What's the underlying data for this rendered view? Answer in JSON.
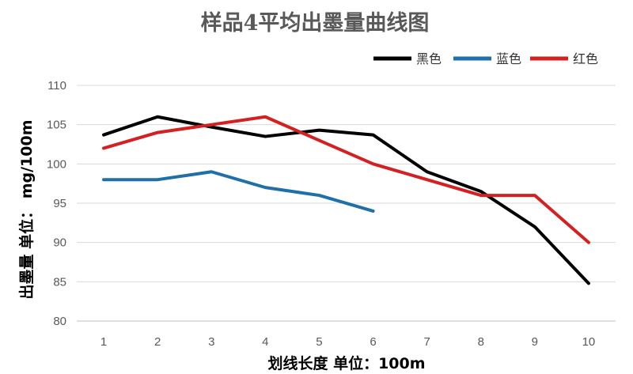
{
  "chart_data": {
    "type": "line",
    "title": "样品4平均出墨量曲线图",
    "xlabel": "划线长度 单位：100m",
    "ylabel": "出墨量 单位： mg/100m",
    "categories": [
      "1",
      "2",
      "3",
      "4",
      "5",
      "6",
      "7",
      "8",
      "9",
      "10"
    ],
    "ylim": [
      80,
      110
    ],
    "yticks": [
      "80",
      "85",
      "90",
      "95",
      "100",
      "105",
      "110"
    ],
    "grid": true,
    "legend_position": "top-right",
    "series": [
      {
        "name": "黑色",
        "color": "#000000",
        "values": [
          103.7,
          106.0,
          104.7,
          103.5,
          104.3,
          103.7,
          99.0,
          96.5,
          92.0,
          84.8
        ]
      },
      {
        "name": "蓝色",
        "color": "#1f6fa8",
        "values": [
          98.0,
          98.0,
          99.0,
          97.0,
          96.0,
          94.0,
          null,
          null,
          null,
          null
        ]
      },
      {
        "name": "红色",
        "color": "#d42020",
        "values": [
          102.0,
          104.0,
          105.0,
          106.0,
          103.0,
          100.0,
          98.0,
          96.0,
          96.0,
          90.0
        ]
      }
    ]
  }
}
